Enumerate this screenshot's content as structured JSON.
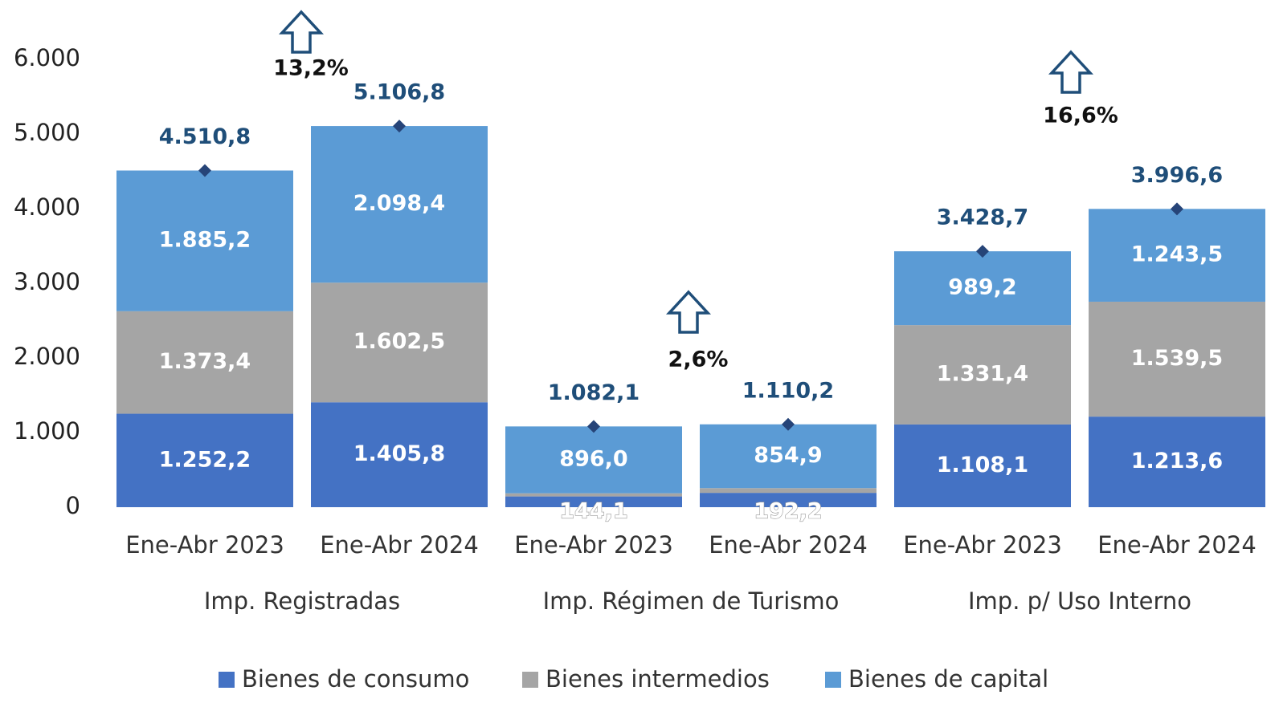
{
  "chart_data": {
    "type": "stacked_bar",
    "categories": [
      "Ene-Abr 2023",
      "Ene-Abr 2024",
      "Ene-Abr 2023",
      "Ene-Abr 2024",
      "Ene-Abr 2023",
      "Ene-Abr 2024"
    ],
    "groups": [
      "Imp. Registradas",
      "Imp. Régimen de Turismo",
      "Imp. p/ Uso Interno"
    ],
    "series": [
      {
        "name": "Bienes de consumo",
        "color": "#4472c4",
        "values": [
          1252.2,
          1405.8,
          144.1,
          192.2,
          1108.1,
          1213.6
        ],
        "value_labels": [
          "1.252,2",
          "1.405,8",
          "144,1",
          "192,2",
          "1.108,1",
          "1.213,6"
        ]
      },
      {
        "name": "Bienes intermedios",
        "color": "#a5a5a5",
        "values": [
          1373.4,
          1602.5,
          42.0,
          63.1,
          1331.4,
          1539.5
        ],
        "value_labels": [
          "1.373,4",
          "1.602,5",
          null,
          null,
          "1.331,4",
          "1.539,5"
        ]
      },
      {
        "name": "Bienes de capital",
        "color": "#5b9bd5",
        "values": [
          1885.2,
          2098.4,
          896.0,
          854.9,
          989.2,
          1243.5
        ],
        "value_labels": [
          "1.885,2",
          "2.098,4",
          "896,0",
          "854,9",
          "989,2",
          "1.243,5"
        ]
      }
    ],
    "totals": {
      "color": "#264478",
      "values": [
        4510.8,
        5106.8,
        1082.1,
        1110.2,
        3428.7,
        3996.6
      ],
      "value_labels": [
        "4.510,8",
        "5.106,8",
        "1.082,1",
        "1.110,2",
        "3.428,7",
        "3.996,6"
      ]
    },
    "growth": {
      "values": [
        13.2,
        2.6,
        16.6
      ],
      "value_labels": [
        "13,2%",
        "2,6%",
        "16,6%"
      ]
    },
    "ylim": [
      0,
      6000
    ],
    "yticks": [
      0,
      {
        "value": 1000,
        "label": "1.000"
      },
      {
        "value": 2000,
        "label": "2.000"
      },
      {
        "value": 3000,
        "label": "3.000"
      },
      {
        "value": 4000,
        "label": "4.000"
      },
      {
        "value": 5000,
        "label": "5.000"
      },
      {
        "value": 6000,
        "label": "6.000"
      }
    ],
    "legend": "bottom"
  }
}
